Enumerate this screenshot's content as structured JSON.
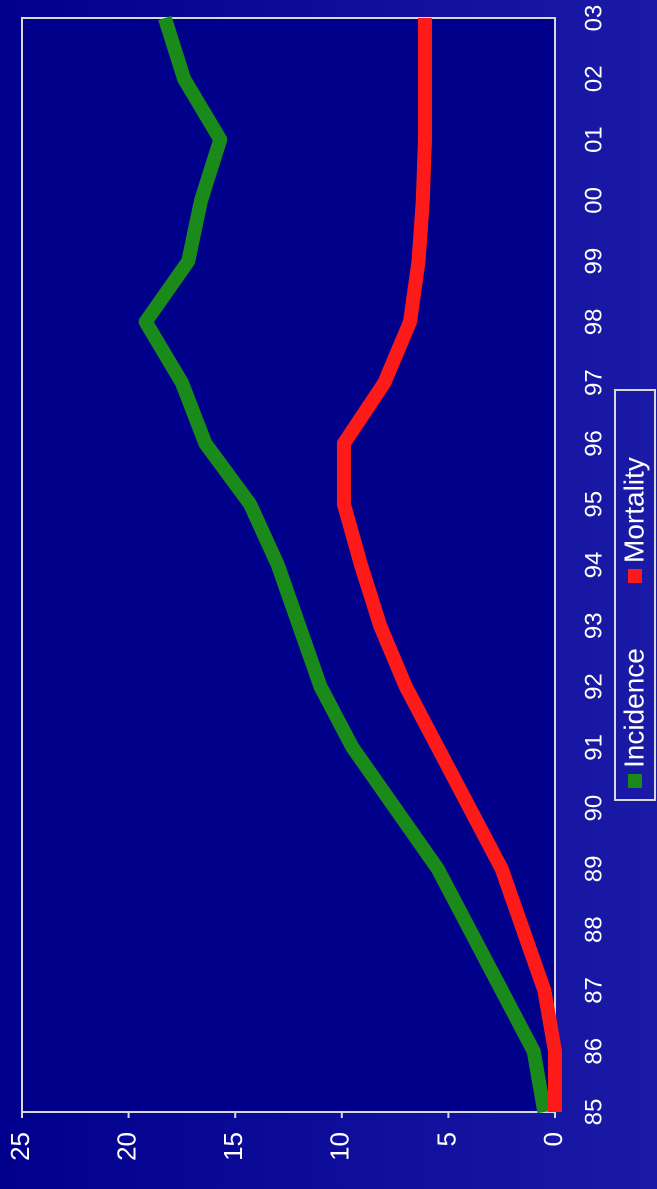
{
  "chart_data": {
    "type": "line",
    "categories": [
      "85",
      "86",
      "87",
      "88",
      "89",
      "90",
      "91",
      "92",
      "93",
      "94",
      "95",
      "96",
      "97",
      "98",
      "99",
      "00",
      "01",
      "02",
      "03"
    ],
    "series": [
      {
        "name": "Incidence",
        "color": "#1a8a1a",
        "values": [
          0.5,
          1,
          2.5,
          4,
          5.5,
          7.5,
          9.5,
          11,
          12,
          13,
          14.3,
          16.4,
          17.5,
          19.2,
          17.2,
          16.6,
          15.7,
          17.4,
          18.3
        ]
      },
      {
        "name": "Mortality",
        "color": "#ff1a1a",
        "values": [
          0,
          0,
          0.5,
          1.5,
          2.5,
          4,
          5.5,
          7,
          8.2,
          9.1,
          9.9,
          9.9,
          8,
          6.8,
          6.4,
          6.2,
          6.1,
          6.1,
          6.1
        ]
      }
    ],
    "ylim": [
      0,
      25
    ],
    "yticks": [
      0,
      5,
      10,
      15,
      20,
      25
    ]
  }
}
